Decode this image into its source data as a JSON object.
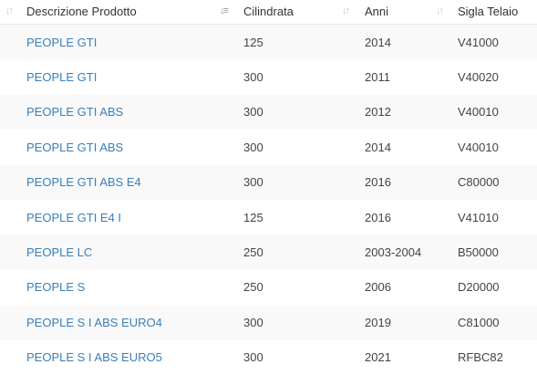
{
  "columns": [
    {
      "label": "Descrizione Prodotto",
      "sort_icon": "sort-both-icon"
    },
    {
      "label": "Cilindrata",
      "sort_icon": "sort-desc-icon"
    },
    {
      "label": "Anni",
      "sort_icon": "sort-both-icon"
    },
    {
      "label": "Sigla Telaio",
      "sort_icon": "sort-both-icon"
    }
  ],
  "rows": [
    {
      "product": "PEOPLE GTI",
      "cc": "125",
      "years": "2014",
      "frame": "V41000"
    },
    {
      "product": "PEOPLE GTI",
      "cc": "300",
      "years": "2011",
      "frame": "V40020"
    },
    {
      "product": "PEOPLE GTI ABS",
      "cc": "300",
      "years": "2012",
      "frame": "V40010"
    },
    {
      "product": "PEOPLE GTI ABS",
      "cc": "300",
      "years": "2014",
      "frame": "V40010"
    },
    {
      "product": "PEOPLE GTI ABS E4",
      "cc": "300",
      "years": "2016",
      "frame": "C80000"
    },
    {
      "product": "PEOPLE GTI E4 I",
      "cc": "125",
      "years": "2016",
      "frame": "V41010"
    },
    {
      "product": "PEOPLE LC",
      "cc": "250",
      "years": "2003-2004",
      "frame": "B50000"
    },
    {
      "product": "PEOPLE S",
      "cc": "250",
      "years": "2006",
      "frame": "D20000"
    },
    {
      "product": "PEOPLE S I ABS EURO4",
      "cc": "300",
      "years": "2019",
      "frame": "C81000"
    },
    {
      "product": "PEOPLE S I ABS EURO5",
      "cc": "300",
      "years": "2021",
      "frame": "RFBC82"
    }
  ],
  "colors": {
    "link": "#3a7fb8",
    "stripe": "#f9f9f9"
  }
}
